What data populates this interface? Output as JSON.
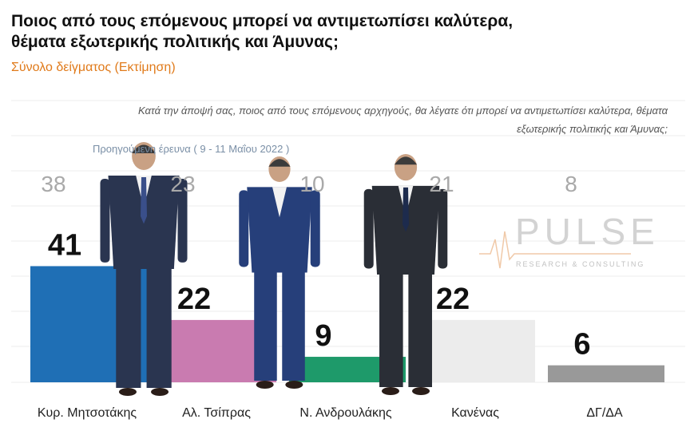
{
  "title": "Ποιος από τους επόμενους μπορεί να αντιμετωπίσει καλύτερα, θέματα εξωτερικής πολιτικής και Άμυνας;",
  "subtitle": "Σύνολο δείγματος   (Εκτίμηση)",
  "question": "Κατά την άποψή σας, ποιος  από τους επόμενους αρχηγούς, θα λέγατε ότι μπορεί να αντιμετωπίσει καλύτερα, θέματα εξωτερικής πολιτικής και Άμυνας;",
  "previous_survey_label": "Προηγούμενη έρευνα  ( 9 - 11 Μαΐου  2022 )",
  "logo": {
    "name": "PULSE",
    "tagline": "RESEARCH & CONSULTING"
  },
  "colors": {
    "mitsotakis": "#1f6fb5",
    "tsipras": "#c97bb0",
    "androulakis": "#1e9a6a",
    "kanenas": "#ececec",
    "dgda": "#999999",
    "title": "#111111",
    "subtitle": "#e07a1a"
  },
  "chart_data": {
    "type": "bar",
    "categories": [
      "Κυρ. Μητσοτάκης",
      "Αλ. Τσίπρας",
      "Ν. Ανδρουλάκης",
      "Κανένας",
      "ΔΓ/ΔΑ"
    ],
    "series": [
      {
        "name": "",
        "values": [
          41,
          22,
          9,
          22,
          6
        ]
      },
      {
        "name": "Προηγούμενη έρευνα  ( 9 - 11 Μαΐου  2022 )",
        "values": [
          38,
          23,
          10,
          21,
          8
        ]
      }
    ],
    "ylim": [
      0,
      45
    ],
    "grid": true,
    "xlabel": "",
    "ylabel": ""
  }
}
